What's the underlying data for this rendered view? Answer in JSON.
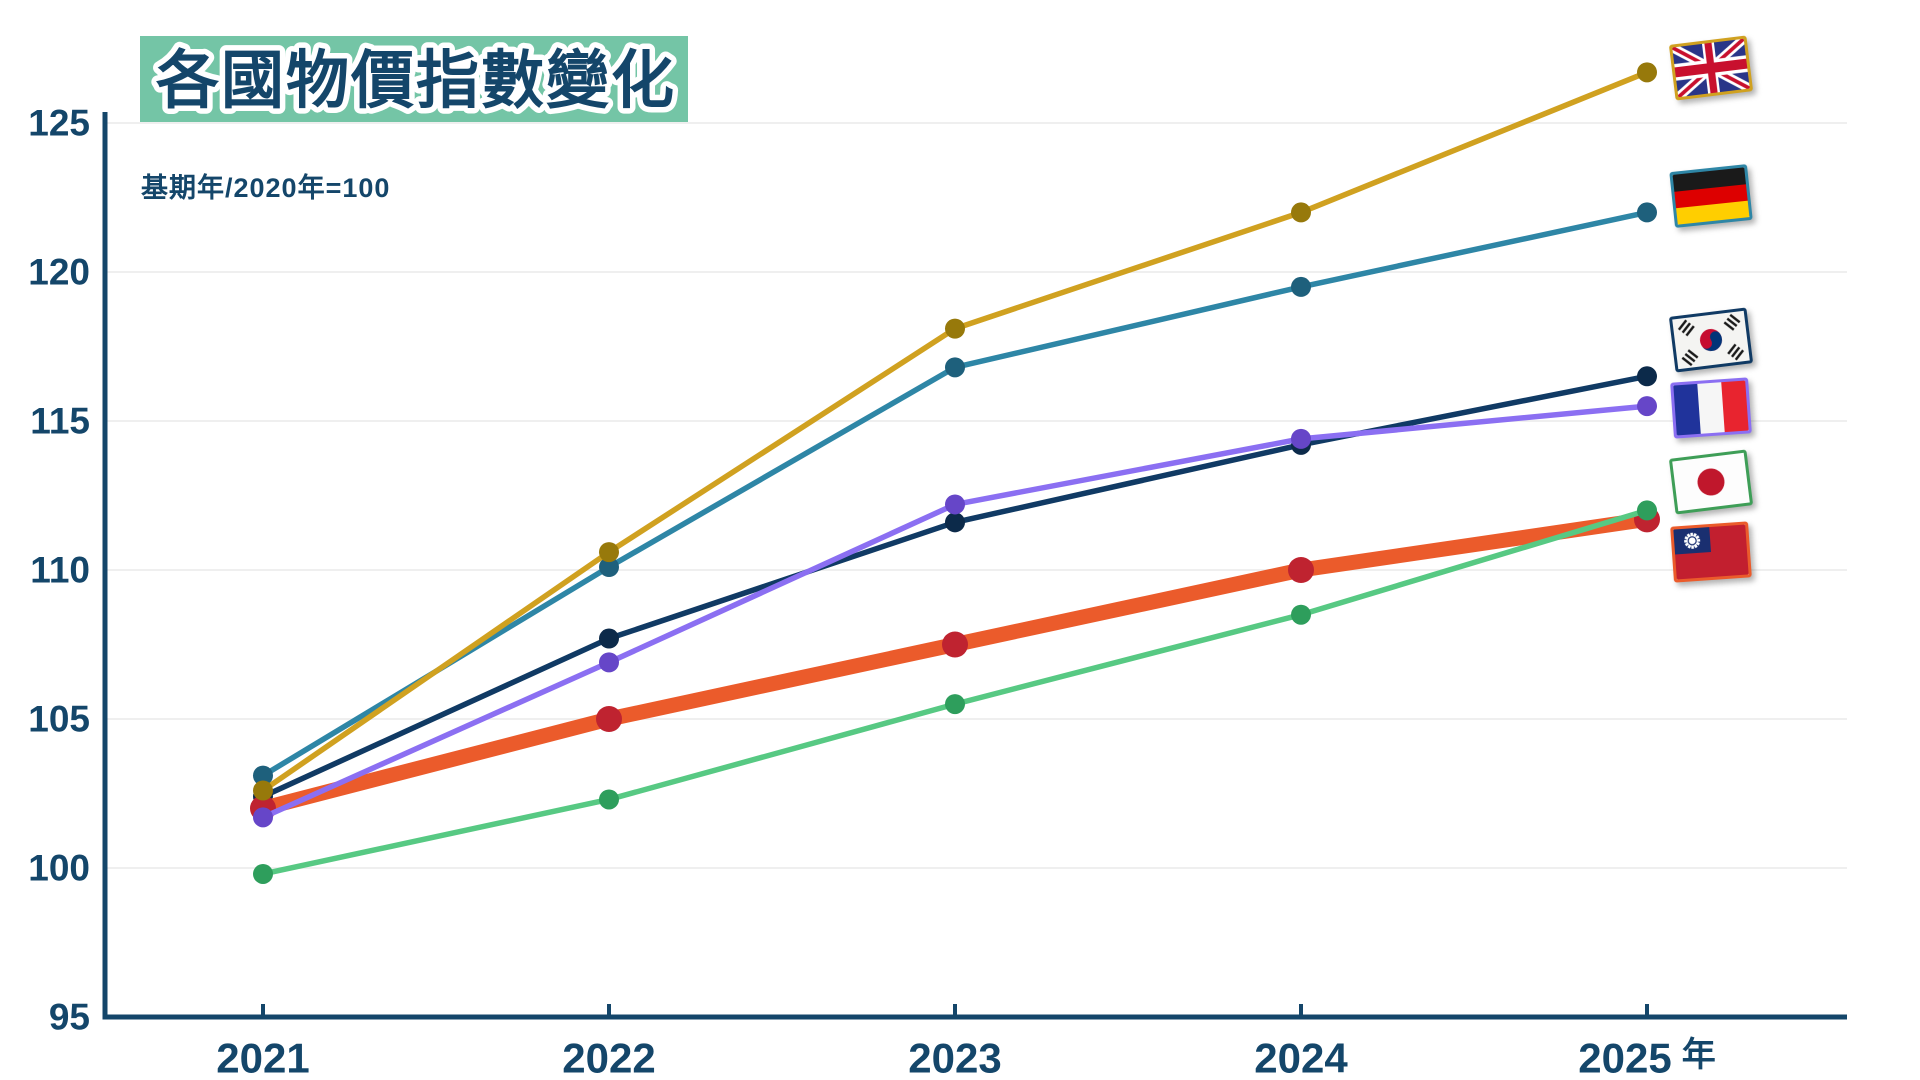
{
  "title": "各國物價指數變化",
  "subtitle": "基期年/2020年=100",
  "colors": {
    "axis_and_text": "#14466A",
    "title_background": "#74C5A6",
    "gridline": "#EFEFEF",
    "background": "#FFFFFF"
  },
  "chart_data": {
    "type": "line",
    "x_labels": [
      "2021",
      "2022",
      "2023",
      "2024",
      "2025"
    ],
    "x_suffix": "年",
    "ylim": [
      95,
      125
    ],
    "yticks": [
      95,
      100,
      105,
      110,
      115,
      120,
      125
    ],
    "grid": "horizontal-only",
    "legend_position": "right-of-line-ends-as-flags",
    "series": [
      {
        "name": "United Kingdom",
        "flag_icon": "uk-flag-icon",
        "color": "#D0A120",
        "dot_color": "#97790B",
        "line_width": 5.5,
        "dot_radius": 10,
        "z": 5,
        "values": [
          102.6,
          110.6,
          118.1,
          122.0,
          126.7
        ]
      },
      {
        "name": "Germany",
        "flag_icon": "germany-flag-icon",
        "color": "#2E86A6",
        "dot_color": "#1E607C",
        "line_width": 5.5,
        "dot_radius": 10,
        "z": 4,
        "values": [
          103.1,
          110.1,
          116.8,
          119.5,
          122.0
        ]
      },
      {
        "name": "South Korea",
        "flag_icon": "korea-flag-icon",
        "color": "#103A64",
        "dot_color": "#0C2A4A",
        "line_width": 5.5,
        "dot_radius": 10,
        "z": 1,
        "values": [
          102.4,
          107.7,
          111.6,
          114.2,
          116.5
        ]
      },
      {
        "name": "France",
        "flag_icon": "france-flag-icon",
        "color": "#8B6FF2",
        "dot_color": "#6646C8",
        "line_width": 5.5,
        "dot_radius": 10,
        "z": 3,
        "values": [
          101.7,
          106.9,
          112.2,
          114.4,
          115.5
        ]
      },
      {
        "name": "Japan",
        "flag_icon": "japan-flag-icon",
        "color": "#57C983",
        "dot_color": "#2E9E5C",
        "line_width": 5.5,
        "dot_radius": 10,
        "z": 6,
        "values": [
          99.8,
          102.3,
          105.5,
          108.5,
          112.0
        ]
      },
      {
        "name": "Taiwan",
        "flag_icon": "taiwan-flag-icon",
        "color": "#EB5B2B",
        "dot_color": "#BF2330",
        "line_width": 15,
        "dot_radius": 13,
        "z": 2,
        "values": [
          102.0,
          105.0,
          107.5,
          110.0,
          111.7
        ]
      }
    ]
  }
}
